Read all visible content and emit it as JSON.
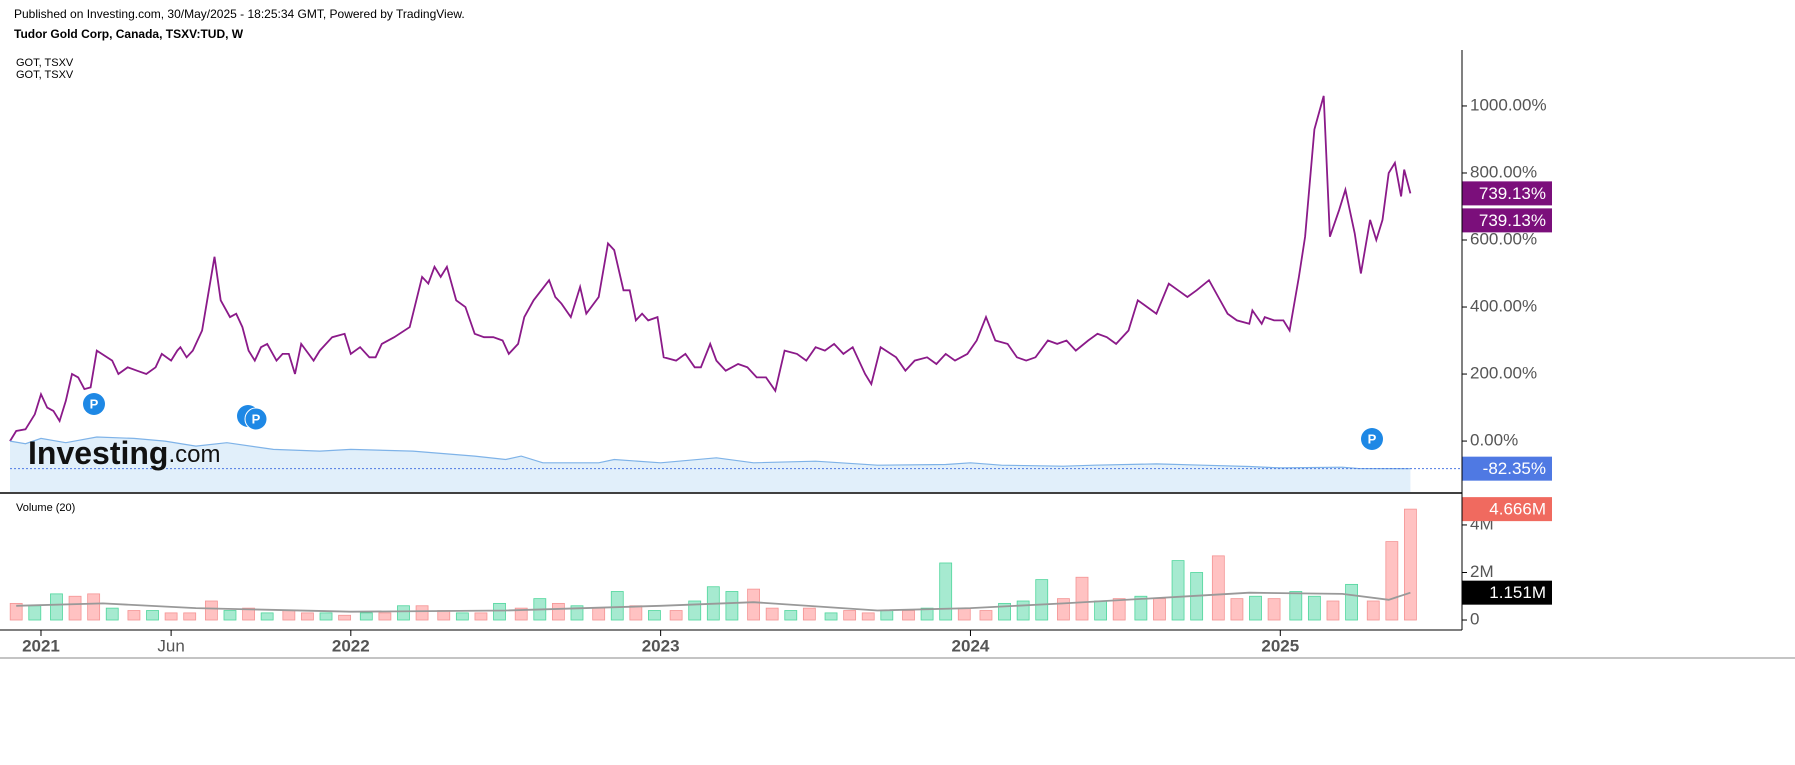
{
  "header": {
    "published": "Published on Investing.com, 30/May/2025 - 18:25:34 GMT, Powered by TradingView.",
    "symbol": "Tudor Gold Corp, Canada, TSXV:TUD, W"
  },
  "legend": [
    "GOT, TSXV",
    "GOT, TSXV"
  ],
  "watermark": [
    "Investing",
    ".com"
  ],
  "event_marker": "P",
  "chart_data": [
    {
      "type": "line",
      "xlim": [
        2020.9,
        2025.58
      ],
      "ylim": [
        -152,
        1167
      ],
      "yticks": [
        {
          "value": 0,
          "label": "0.00%"
        },
        {
          "value": 200,
          "label": "200.00%"
        },
        {
          "value": 400,
          "label": "400.00%"
        },
        {
          "value": 600,
          "label": "600.00%"
        },
        {
          "value": 800,
          "label": "800.00%"
        },
        {
          "value": 1000,
          "label": "1000.00%"
        }
      ],
      "series": [
        {
          "color": "#8b1a89",
          "label_color": "#7b0f7b",
          "last_labels": [
            "739.13%",
            "739.13%"
          ],
          "x": [
            2020.9,
            2020.92,
            2020.95,
            2020.98,
            2021.0,
            2021.02,
            2021.04,
            2021.06,
            2021.08,
            2021.1,
            2021.12,
            2021.14,
            2021.16,
            2021.18,
            2021.23,
            2021.25,
            2021.28,
            2021.31,
            2021.34,
            2021.37,
            2021.39,
            2021.42,
            2021.44,
            2021.45,
            2021.47,
            2021.49,
            2021.52,
            2021.56,
            2021.58,
            2021.61,
            2021.63,
            2021.65,
            2021.67,
            2021.69,
            2021.71,
            2021.73,
            2021.76,
            2021.78,
            2021.8,
            2021.82,
            2021.84,
            2021.88,
            2021.9,
            2021.94,
            2021.98,
            2022.0,
            2022.03,
            2022.06,
            2022.08,
            2022.1,
            2022.14,
            2022.19,
            2022.23,
            2022.25,
            2022.27,
            2022.29,
            2022.31,
            2022.34,
            2022.37,
            2022.4,
            2022.43,
            2022.46,
            2022.49,
            2022.51,
            2022.54,
            2022.56,
            2022.59,
            2022.64,
            2022.66,
            2022.68,
            2022.71,
            2022.74,
            2022.76,
            2022.8,
            2022.83,
            2022.85,
            2022.88,
            2022.9,
            2022.92,
            2022.94,
            2022.96,
            2022.99,
            2023.01,
            2023.05,
            2023.08,
            2023.11,
            2023.13,
            2023.16,
            2023.18,
            2023.21,
            2023.25,
            2023.28,
            2023.31,
            2023.34,
            2023.37,
            2023.4,
            2023.44,
            2023.47,
            2023.5,
            2023.53,
            2023.56,
            2023.59,
            2023.62,
            2023.66,
            2023.68,
            2023.71,
            2023.76,
            2023.79,
            2023.82,
            2023.86,
            2023.89,
            2023.92,
            2023.95,
            2023.99,
            2024.02,
            2024.05,
            2024.08,
            2024.12,
            2024.15,
            2024.18,
            2024.21,
            2024.25,
            2024.28,
            2024.31,
            2024.34,
            2024.38,
            2024.41,
            2024.44,
            2024.47,
            2024.51,
            2024.54,
            2024.57,
            2024.6,
            2024.64,
            2024.67,
            2024.7,
            2024.73,
            2024.77,
            2024.8,
            2024.83,
            2024.86,
            2024.9,
            2024.91,
            2024.94,
            2024.95,
            2024.98,
            2025.01,
            2025.03,
            2025.06,
            2025.08,
            2025.11,
            2025.14,
            2025.16,
            2025.19,
            2025.21,
            2025.24,
            2025.26,
            2025.29,
            2025.31,
            2025.33,
            2025.35,
            2025.37,
            2025.39,
            2025.4,
            2025.42
          ],
          "values": [
            0,
            30,
            35,
            80,
            140,
            100,
            90,
            60,
            120,
            200,
            190,
            155,
            160,
            270,
            240,
            200,
            220,
            210,
            200,
            220,
            260,
            240,
            270,
            280,
            250,
            270,
            330,
            550,
            420,
            370,
            380,
            340,
            270,
            240,
            280,
            290,
            240,
            260,
            260,
            200,
            290,
            240,
            270,
            310,
            320,
            260,
            280,
            250,
            250,
            290,
            310,
            340,
            490,
            470,
            520,
            490,
            520,
            420,
            400,
            320,
            310,
            310,
            300,
            260,
            290,
            370,
            420,
            480,
            430,
            410,
            370,
            460,
            380,
            430,
            590,
            570,
            450,
            450,
            360,
            380,
            360,
            370,
            250,
            240,
            260,
            220,
            220,
            290,
            240,
            210,
            230,
            220,
            190,
            190,
            150,
            270,
            260,
            240,
            280,
            270,
            290,
            260,
            280,
            200,
            170,
            280,
            250,
            210,
            240,
            250,
            230,
            260,
            240,
            260,
            300,
            370,
            300,
            290,
            250,
            240,
            250,
            300,
            290,
            300,
            270,
            300,
            320,
            310,
            290,
            330,
            420,
            400,
            380,
            470,
            450,
            430,
            450,
            480,
            430,
            380,
            360,
            350,
            390,
            350,
            370,
            360,
            360,
            330,
            490,
            610,
            930,
            1030,
            610,
            690,
            750,
            620,
            500,
            660,
            600,
            660,
            800,
            830,
            730,
            810,
            739.13
          ]
        },
        {
          "color": "#7fb3e8",
          "fill": "#e1effa",
          "label_color": "#4f79e3",
          "last_labels": [
            "-82.35%"
          ],
          "x": [
            2020.9,
            2020.95,
            2021.0,
            2021.08,
            2021.18,
            2021.3,
            2021.4,
            2021.5,
            2021.6,
            2021.75,
            2021.9,
            2022.0,
            2022.2,
            2022.4,
            2022.5,
            2022.55,
            2022.62,
            2022.8,
            2022.85,
            2023.0,
            2023.18,
            2023.3,
            2023.5,
            2023.7,
            2023.92,
            2024.0,
            2024.1,
            2024.3,
            2024.4,
            2024.6,
            2024.75,
            2024.9,
            2025.0,
            2025.2,
            2025.25,
            2025.42
          ],
          "values": [
            0,
            -8,
            8,
            -5,
            12,
            8,
            0,
            -15,
            -5,
            -25,
            -30,
            -25,
            -30,
            -45,
            -55,
            -45,
            -65,
            -65,
            -55,
            -65,
            -50,
            -65,
            -60,
            -72,
            -70,
            -65,
            -72,
            -75,
            -72,
            -68,
            -72,
            -76,
            -80,
            -78,
            -82,
            -82.35
          ]
        }
      ]
    },
    {
      "type": "bar",
      "title": "Volume (20)",
      "xlim": [
        2020.9,
        2025.58
      ],
      "xticks": [
        2021,
        {
          "value": 2021.42,
          "label": "Jun"
        },
        2022,
        2023,
        2024,
        2025
      ],
      "ylim": [
        -0.42,
        5.05
      ],
      "yticks": [
        0,
        {
          "value": 2,
          "label": "2M"
        },
        {
          "value": 4,
          "label": "4M"
        }
      ],
      "series": [
        {
          "color": "#a6ead0",
          "stroke": "#4fd69c",
          "x": [
            2020.98,
            2021.05,
            2021.23,
            2021.36,
            2021.61,
            2021.73,
            2021.92,
            2022.05,
            2022.17,
            2022.36,
            2022.48,
            2022.61,
            2022.73,
            2022.86,
            2022.98,
            2023.11,
            2023.17,
            2023.23,
            2023.42,
            2023.55,
            2023.73,
            2023.86,
            2023.92,
            2024.11,
            2024.17,
            2024.23,
            2024.42,
            2024.55,
            2024.67,
            2024.73,
            2024.92,
            2025.05,
            2025.11,
            2025.23
          ],
          "values": [
            0.6,
            1.1,
            0.5,
            0.4,
            0.4,
            0.3,
            0.3,
            0.3,
            0.6,
            0.3,
            0.7,
            0.9,
            0.6,
            1.2,
            0.4,
            0.8,
            1.4,
            1.2,
            0.4,
            0.3,
            0.4,
            0.5,
            2.4,
            0.7,
            0.8,
            1.7,
            0.8,
            1.0,
            2.5,
            2.0,
            1.0,
            1.2,
            1.0,
            1.5
          ]
        },
        {
          "color": "#ffc2c2",
          "stroke": "#f49494",
          "label_color": "#f06a5f",
          "last_labels": [
            "4.666M"
          ],
          "x": [
            2020.92,
            2021.11,
            2021.17,
            2021.3,
            2021.42,
            2021.48,
            2021.55,
            2021.67,
            2021.8,
            2021.86,
            2021.98,
            2022.11,
            2022.23,
            2022.3,
            2022.42,
            2022.55,
            2022.67,
            2022.8,
            2022.92,
            2023.05,
            2023.3,
            2023.36,
            2023.48,
            2023.61,
            2023.67,
            2023.8,
            2023.98,
            2024.05,
            2024.3,
            2024.36,
            2024.48,
            2024.61,
            2024.8,
            2024.86,
            2024.98,
            2025.17,
            2025.3,
            2025.36,
            2025.42
          ],
          "values": [
            0.7,
            1.0,
            1.1,
            0.4,
            0.3,
            0.3,
            0.8,
            0.5,
            0.4,
            0.3,
            0.2,
            0.3,
            0.6,
            0.4,
            0.3,
            0.5,
            0.7,
            0.5,
            0.6,
            0.4,
            1.3,
            0.5,
            0.5,
            0.4,
            0.3,
            0.4,
            0.5,
            0.4,
            0.9,
            1.8,
            0.9,
            0.9,
            2.7,
            0.9,
            0.9,
            0.8,
            0.8,
            3.3,
            4.666
          ]
        },
        {
          "type": "line",
          "color": "#999999",
          "label_color": "#000000",
          "last_labels": [
            "1.151M"
          ],
          "x": [
            2020.92,
            2021.2,
            2021.5,
            2022.0,
            2022.5,
            2023.0,
            2023.3,
            2023.7,
            2024.0,
            2024.3,
            2024.7,
            2024.9,
            2025.2,
            2025.35,
            2025.42
          ],
          "values": [
            0.6,
            0.7,
            0.5,
            0.35,
            0.4,
            0.6,
            0.75,
            0.4,
            0.5,
            0.7,
            1.0,
            1.15,
            1.1,
            0.85,
            1.151
          ]
        }
      ]
    }
  ]
}
